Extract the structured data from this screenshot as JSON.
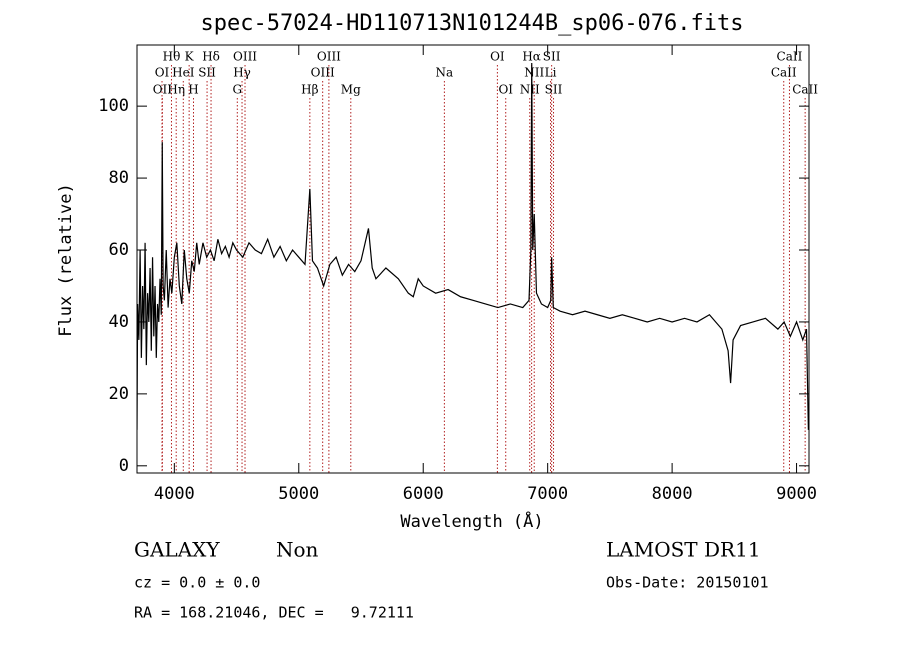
{
  "chart_data": {
    "type": "line",
    "title": "spec-57024-HD110713N101244B_sp06-076.fits",
    "x_label": "Wavelength (Å)",
    "y_label": "Flux (relative)",
    "xlim": [
      3700,
      9100
    ],
    "ylim": [
      -2,
      117
    ],
    "xticks": [
      4000,
      5000,
      6000,
      7000,
      8000,
      9000
    ],
    "yticks": [
      0,
      20,
      40,
      60,
      80,
      100
    ],
    "color": "#000000",
    "line_color": "#b22222",
    "x": [
      3700,
      3705,
      3715,
      3725,
      3735,
      3745,
      3755,
      3765,
      3775,
      3785,
      3795,
      3805,
      3815,
      3825,
      3835,
      3845,
      3855,
      3865,
      3875,
      3885,
      3895,
      3903,
      3910,
      3920,
      3935,
      3950,
      3965,
      3980,
      4000,
      4020,
      4040,
      4060,
      4080,
      4100,
      4120,
      4140,
      4160,
      4180,
      4200,
      4230,
      4260,
      4290,
      4320,
      4350,
      4380,
      4410,
      4440,
      4470,
      4500,
      4550,
      4600,
      4650,
      4700,
      4750,
      4800,
      4850,
      4900,
      4950,
      5000,
      5050,
      5089,
      5110,
      5150,
      5200,
      5250,
      5300,
      5350,
      5400,
      5450,
      5500,
      5560,
      5590,
      5620,
      5700,
      5800,
      5880,
      5920,
      5960,
      6000,
      6100,
      6200,
      6300,
      6400,
      6500,
      6600,
      6700,
      6800,
      6850,
      6865,
      6872,
      6880,
      6892,
      6910,
      6950,
      7000,
      7025,
      7032,
      7045,
      7100,
      7200,
      7300,
      7400,
      7500,
      7600,
      7700,
      7800,
      7900,
      8000,
      8100,
      8200,
      8300,
      8400,
      8450,
      8470,
      8490,
      8550,
      8650,
      8750,
      8850,
      8900,
      8950,
      9000,
      9050,
      9080,
      9095
    ],
    "values": [
      10,
      45,
      35,
      60,
      30,
      50,
      38,
      62,
      28,
      48,
      40,
      55,
      32,
      58,
      36,
      50,
      30,
      45,
      40,
      52,
      42,
      90,
      50,
      46,
      60,
      44,
      52,
      48,
      58,
      62,
      50,
      45,
      60,
      52,
      48,
      57,
      54,
      62,
      56,
      62,
      58,
      60,
      57,
      63,
      59,
      61,
      58,
      62,
      60,
      58,
      62,
      60,
      59,
      63,
      58,
      61,
      57,
      60,
      58,
      56,
      77,
      57,
      55,
      50,
      56,
      58,
      53,
      56,
      54,
      57,
      66,
      55,
      52,
      55,
      52,
      48,
      47,
      52,
      50,
      48,
      49,
      47,
      46,
      45,
      44,
      45,
      44,
      46,
      60,
      112,
      60,
      70,
      48,
      45,
      44,
      46,
      58,
      44,
      43,
      42,
      43,
      42,
      41,
      42,
      41,
      40,
      41,
      40,
      41,
      40,
      42,
      38,
      32,
      23,
      35,
      39,
      40,
      41,
      38,
      40,
      36,
      40,
      35,
      38,
      10
    ],
    "line_rows": [
      [
        {
          "name": "Hθ",
          "wavelength": 3977
        },
        {
          "name": "K",
          "wavelength": 4119
        },
        {
          "name": "Hδ",
          "wavelength": 4295
        },
        {
          "name": "OIII",
          "wavelength": 4568
        },
        {
          "name": "OIII",
          "wavelength": 5242
        },
        {
          "name": "OI",
          "wavelength": 6596
        },
        {
          "name": "Hα",
          "wavelength": 6871
        },
        {
          "name": "SII",
          "wavelength": 7032
        },
        {
          "name": "CaII",
          "wavelength": 8943
        }
      ],
      [
        {
          "name": "OI",
          "wavelength": 3901
        },
        {
          "name": "HeI",
          "wavelength": 4072
        },
        {
          "name": "SII",
          "wavelength": 4263
        },
        {
          "name": "Hγ",
          "wavelength": 4544
        },
        {
          "name": "OIII",
          "wavelength": 5192
        },
        {
          "name": "Na",
          "wavelength": 6170
        },
        {
          "name": "NII",
          "wavelength": 6892
        },
        {
          "name": "Li",
          "wavelength": 7023
        },
        {
          "name": "CaII",
          "wavelength": 8897
        }
      ],
      [
        {
          "name": "OII",
          "wavelength": 3904
        },
        {
          "name": "Hη",
          "wavelength": 4015
        },
        {
          "name": "H",
          "wavelength": 4154
        },
        {
          "name": "G",
          "wavelength": 4506
        },
        {
          "name": "Hβ",
          "wavelength": 5089
        },
        {
          "name": "Mg",
          "wavelength": 5418
        },
        {
          "name": "OI",
          "wavelength": 6663
        },
        {
          "name": "NII",
          "wavelength": 6856
        },
        {
          "name": "SII",
          "wavelength": 7047
        },
        {
          "name": "CaII",
          "wavelength": 9069
        }
      ]
    ],
    "class": "GALAXY",
    "subclass": "Non",
    "survey": "LAMOST DR11",
    "redshift": "cz = 0.0 ± 0.0",
    "obs_date": "Obs-Date: 20150101",
    "coords": "RA = 168.21046, DEC =   9.72111"
  }
}
